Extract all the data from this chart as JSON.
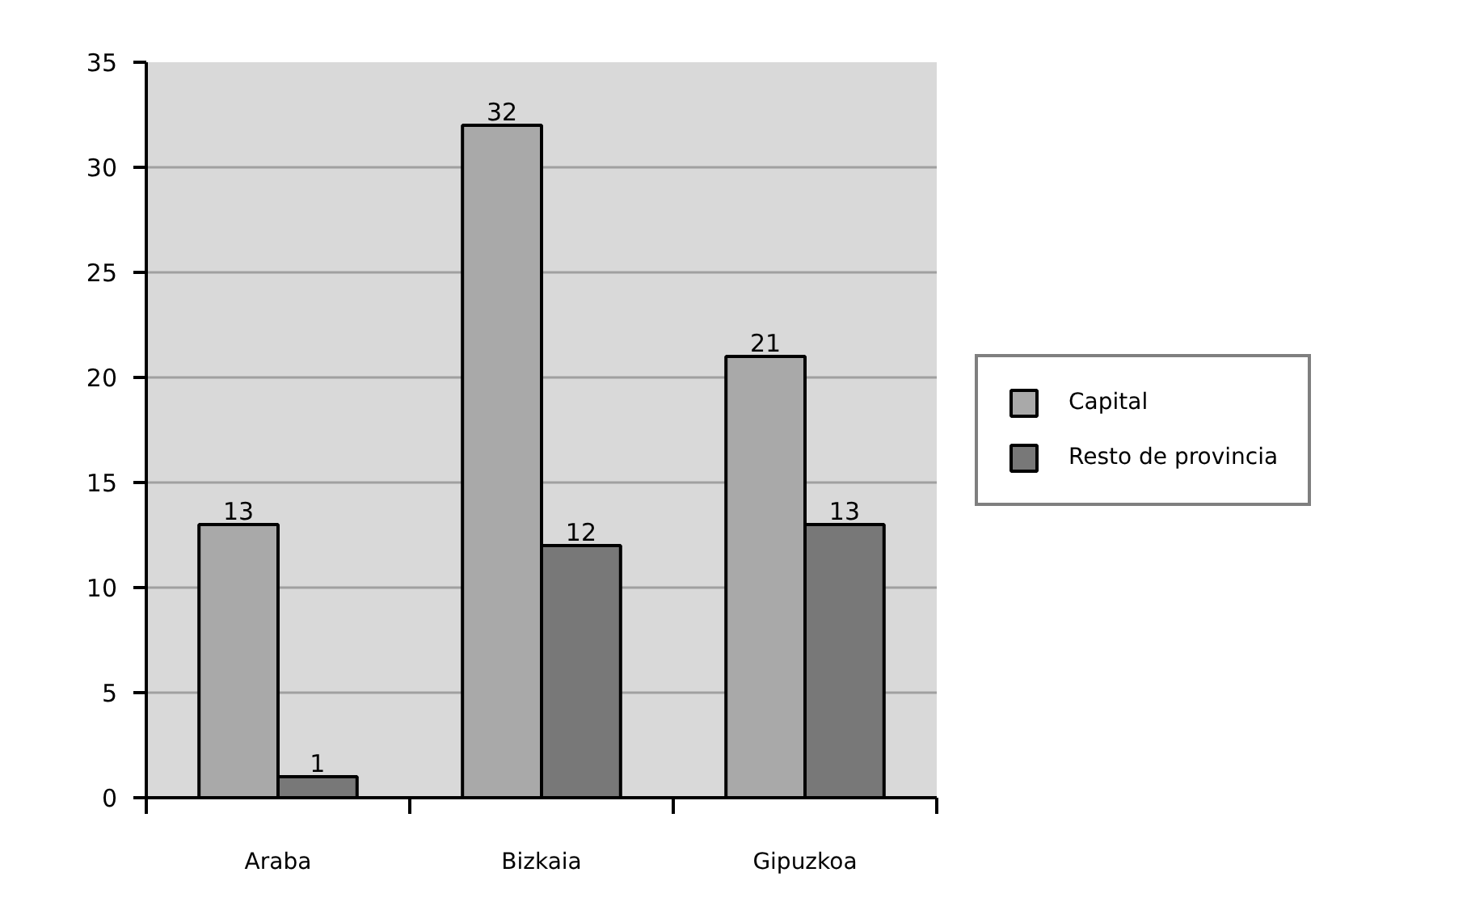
{
  "chart_data": {
    "type": "bar",
    "categories": [
      "Araba",
      "Bizkaia",
      "Gipuzkoa"
    ],
    "series": [
      {
        "name": "Capital",
        "color": "#a9a9a9",
        "values": [
          13,
          32,
          21
        ]
      },
      {
        "name": "Resto de provincia",
        "color": "#787878",
        "values": [
          1,
          12,
          13
        ]
      }
    ],
    "ylim": [
      0,
      35
    ],
    "yticks": [
      0,
      5,
      10,
      15,
      20,
      25,
      30,
      35
    ],
    "grid": "y",
    "legend": "right",
    "data_labels": true
  }
}
